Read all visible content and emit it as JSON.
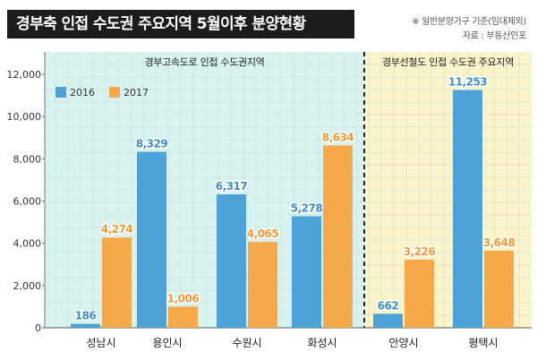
{
  "header": {
    "title": "경부축 인접 수도권 주요지역 5월이후 분양현황",
    "note": "※ 일반분양가구 기준(임대제외)",
    "source": "자료 : 부동산인포"
  },
  "colors": {
    "series_2016": "#4da3d6",
    "series_2017": "#f6a94a",
    "label_2016": "#3f8fc2",
    "label_2017": "#ee9a36",
    "panel_left": "#d8f3ef",
    "panel_right": "#fbf3c9",
    "grid": "#9ccfcb"
  },
  "chart_data": {
    "type": "bar",
    "categories": [
      "성남시",
      "용인시",
      "수원시",
      "화성시",
      "안양시",
      "평택시"
    ],
    "series": [
      {
        "name": "2016",
        "values": [
          186,
          8329,
          6317,
          5278,
          662,
          11253
        ],
        "labels": [
          "186",
          "8,329",
          "6,317",
          "5,278",
          "662",
          "11,253"
        ]
      },
      {
        "name": "2017",
        "values": [
          4274,
          1006,
          4065,
          8634,
          3226,
          3648
        ],
        "labels": [
          "4,274",
          "1,006",
          "4,065",
          "8,634",
          "3,226",
          "3,648"
        ]
      }
    ],
    "ylim": [
      0,
      12000
    ],
    "y_ticks": [
      "0",
      "2,000",
      "4,000",
      "6,000",
      "8,000",
      "10,000",
      "12,000"
    ],
    "groups": [
      {
        "label": "경부고속도로 인접 수도권지역",
        "count": 4
      },
      {
        "label": "경부선철도 인접 수도권 주요지역",
        "count": 2
      }
    ],
    "legend_position": "top-left",
    "grid": true
  }
}
